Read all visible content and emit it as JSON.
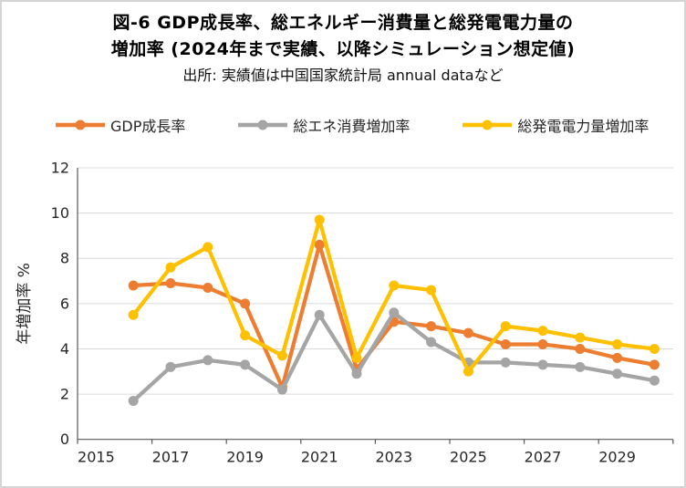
{
  "figure": {
    "title_line1": "図-6  GDP成長率、総エネルギー消費量と総発電電力量の",
    "title_line2": "増加率 (2024年まで実績、以降シミュレーション想定値)",
    "source_line": "出所: 実績値は中国国家統計局 annual dataなど"
  },
  "chart_data": {
    "type": "line",
    "title": "図-6 GDP成長率、総エネルギー消費量と総発電電力量の増加率 (2024年まで実績、以降シミュレーション想定値)",
    "source": "出所: 実績値は中国国家統計局 annual dataなど",
    "x": [
      2016,
      2017,
      2018,
      2019,
      2020,
      2021,
      2022,
      2023,
      2024,
      2025,
      2026,
      2027,
      2028,
      2029,
      2030
    ],
    "series": [
      {
        "name": "GDP成長率",
        "color": "#ED7D31",
        "values": [
          6.8,
          6.9,
          6.7,
          6.0,
          2.3,
          8.6,
          3.1,
          5.2,
          5.0,
          4.7,
          4.2,
          4.2,
          4.0,
          3.6,
          3.3
        ]
      },
      {
        "name": "総エネ消費増加率",
        "color": "#A5A5A5",
        "values": [
          1.7,
          3.2,
          3.5,
          3.3,
          2.2,
          5.5,
          2.9,
          5.6,
          4.3,
          3.4,
          3.4,
          3.3,
          3.2,
          2.9,
          2.6
        ]
      },
      {
        "name": "総発電電力量増加率",
        "color": "#FFC000",
        "values": [
          5.5,
          7.6,
          8.5,
          4.6,
          3.7,
          9.7,
          3.6,
          6.8,
          6.6,
          3.0,
          5.0,
          4.8,
          4.5,
          4.2,
          4.0
        ]
      }
    ],
    "xlabel": "",
    "ylabel": "年増加率 %",
    "ylim": [
      0,
      12
    ],
    "ytick_step": 2,
    "yticks": [
      0,
      2,
      4,
      6,
      8,
      10,
      12
    ],
    "xticks": [
      2015,
      2017,
      2019,
      2021,
      2023,
      2025,
      2027,
      2029
    ],
    "x_axis_range": [
      2015,
      2030
    ],
    "grid": true,
    "legend_position": "top",
    "marker": "circle"
  },
  "style": {
    "background": "#FFFFFF",
    "border_color": "#D5D5D5",
    "grid_color": "#D9D9D9",
    "axis_color": "#595959",
    "tick_label_color": "#262626",
    "title_color": "#000000"
  }
}
